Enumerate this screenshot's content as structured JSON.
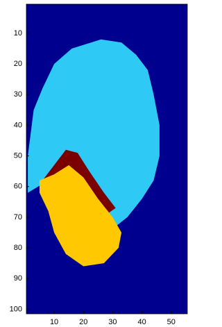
{
  "chart_data": {
    "type": "region-map",
    "background": "#00008f",
    "xlim": [
      0.5,
      55.5
    ],
    "ylim": [
      0.5,
      101.5
    ],
    "xticks": [
      10,
      20,
      30,
      40,
      50
    ],
    "yticks": [
      10,
      20,
      30,
      40,
      50,
      60,
      70,
      80,
      90,
      100
    ],
    "regions": [
      {
        "color": "#2fc9f5",
        "x": [
          26,
          33,
          38,
          42,
          44,
          46,
          46,
          44,
          40,
          35,
          31,
          28,
          22,
          15,
          8,
          1,
          1,
          3,
          6,
          10,
          16
        ],
        "y": [
          12,
          13,
          17,
          22,
          30,
          40,
          50,
          58,
          64,
          70,
          73,
          68,
          60,
          55,
          58,
          62,
          50,
          35,
          28,
          20,
          15
        ]
      },
      {
        "color": "#7a0000",
        "x": [
          6,
          10,
          14,
          18,
          22,
          27,
          31,
          28,
          22,
          15,
          10,
          5
        ],
        "y": [
          58,
          53,
          48,
          49,
          55,
          62,
          67,
          69,
          61,
          55,
          59,
          61
        ]
      },
      {
        "color": "#ffc800",
        "x": [
          5,
          10,
          15,
          20,
          25,
          30,
          33,
          32,
          27,
          20,
          14,
          10,
          8,
          5
        ],
        "y": [
          58,
          56,
          53,
          57,
          64,
          70,
          75,
          80,
          85,
          86,
          82,
          75,
          68,
          62
        ]
      }
    ]
  }
}
